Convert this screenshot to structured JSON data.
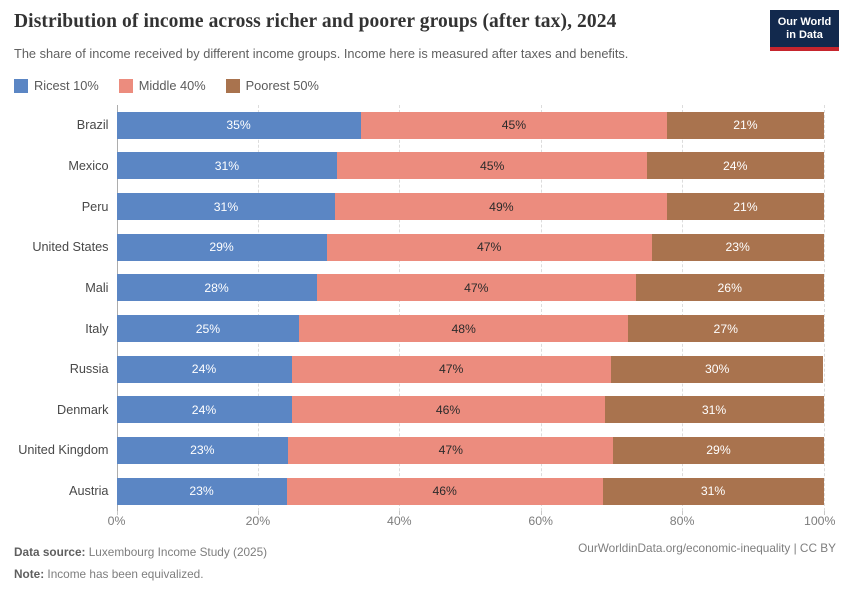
{
  "header": {
    "title": "Distribution of income across richer and poorer groups (after tax), 2024",
    "subtitle": "The share of income received by different income groups. Income here is measured after taxes and benefits.",
    "logo_line1": "Our World",
    "logo_line2": "in Data",
    "logo_bg": "#12294d",
    "logo_accent": "#c6252d"
  },
  "legend": {
    "items": [
      {
        "label": "Ricest 10%",
        "color": "#5b86c4"
      },
      {
        "label": "Middle 40%",
        "color": "#ec8c7e"
      },
      {
        "label": "Poorest 50%",
        "color": "#a9734e"
      }
    ]
  },
  "chart_data": {
    "type": "bar",
    "orientation": "horizontal",
    "stacked": true,
    "normalized_to_100": true,
    "title": "Distribution of income across richer and poorer groups (after tax), 2024",
    "categories": [
      "Brazil",
      "Mexico",
      "Peru",
      "United States",
      "Mali",
      "Italy",
      "Russia",
      "Denmark",
      "United Kingdom",
      "Austria"
    ],
    "series": [
      {
        "name": "Ricest 10%",
        "color": "#5b86c4",
        "label_color": "#ffffff",
        "values": [
          35,
          31,
          31,
          29,
          28,
          25,
          24,
          24,
          23,
          23
        ]
      },
      {
        "name": "Middle 40%",
        "color": "#ec8c7e",
        "label_color": "#2b2b2b",
        "values": [
          45,
          45,
          49,
          47,
          47,
          48,
          47,
          46,
          47,
          46
        ]
      },
      {
        "name": "Poorest 50%",
        "color": "#a9734e",
        "label_color": "#ffffff",
        "values": [
          21,
          24,
          21,
          23,
          26,
          27,
          30,
          31,
          29,
          31
        ]
      }
    ],
    "value_suffix": "%",
    "xlim": [
      0,
      100
    ],
    "x_tick_values": [
      0,
      20,
      40,
      60,
      80,
      100
    ],
    "x_tick_labels": [
      "0%",
      "20%",
      "40%",
      "60%",
      "80%",
      "100%"
    ],
    "gridline_values": [
      20,
      40,
      60,
      80,
      100
    ],
    "grid": true,
    "legend_position": "top"
  },
  "footer": {
    "datasource_label": "Data source:",
    "datasource_text": " Luxembourg Income Study (2025)",
    "note_label": "Note:",
    "note_text": " Income has been equivalized.",
    "right_text": "OurWorldinData.org/economic-inequality | CC BY"
  }
}
